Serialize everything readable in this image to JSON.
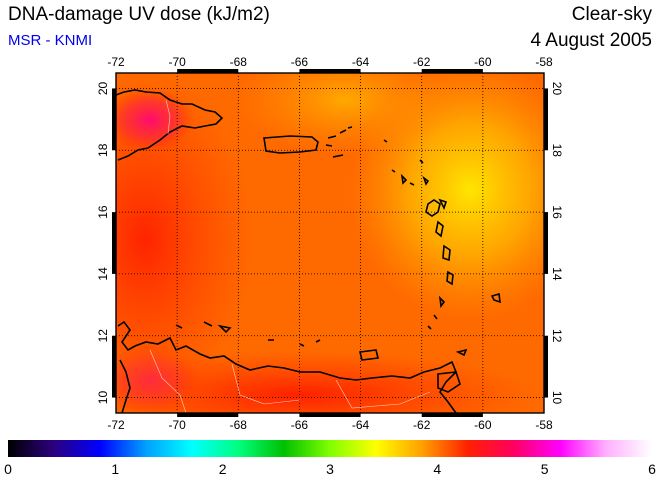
{
  "header": {
    "title": "DNA-damage UV dose (kJ/m2)",
    "source": "MSR - KNMI",
    "condition": "Clear-sky",
    "date": "4 August 2005"
  },
  "map": {
    "lon_ticks": [
      "-72",
      "-70",
      "-68",
      "-66",
      "-64",
      "-62",
      "-60",
      "-58"
    ],
    "lat_ticks": [
      "20",
      "18",
      "16",
      "14",
      "12",
      "10"
    ]
  },
  "colorbar": {
    "labels": [
      "0",
      "1",
      "2",
      "3",
      "4",
      "5",
      "6"
    ],
    "range": [
      0,
      6
    ],
    "colors": [
      "#000000",
      "#2b0080",
      "#0000ff",
      "#00a0ff",
      "#00ffff",
      "#00ff80",
      "#00c000",
      "#80ff00",
      "#ffff00",
      "#ffa000",
      "#ff2000",
      "#ff0060",
      "#ff00ff",
      "#ffb0ff",
      "#ffffff"
    ]
  },
  "colors": {
    "base_field": "#ff6a00",
    "high_field": "#ffd400",
    "peak_field": "#ff1060",
    "low_field": "#ff2a00",
    "source_text": "#0000ee"
  }
}
